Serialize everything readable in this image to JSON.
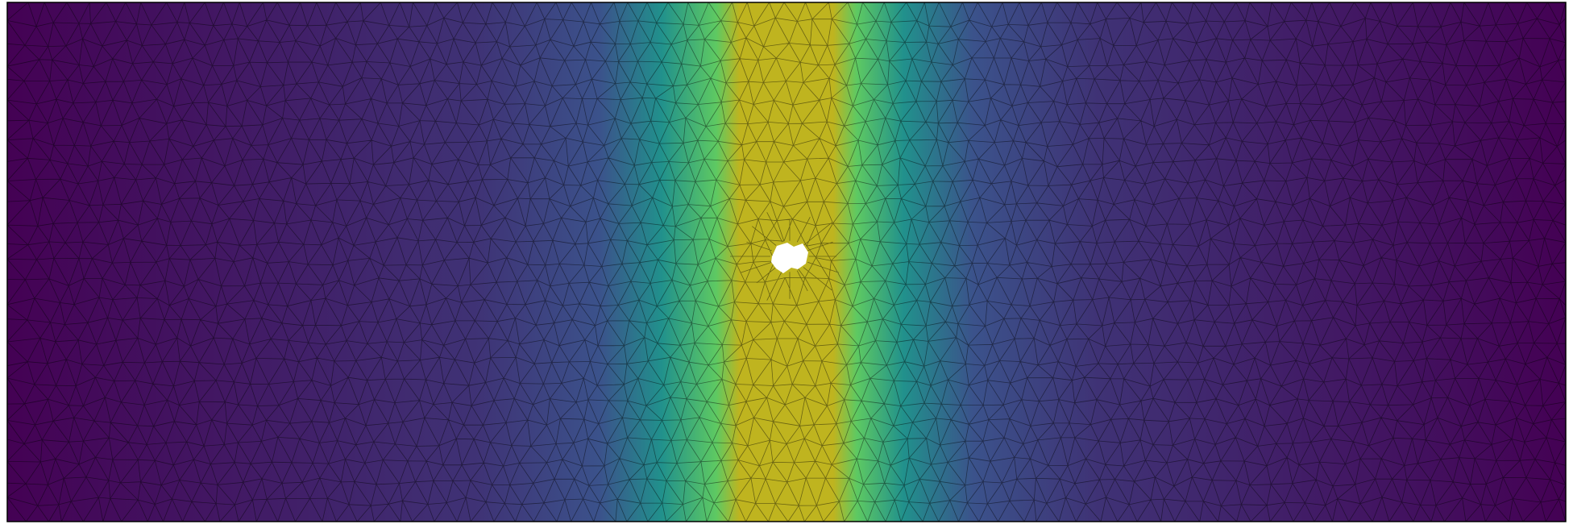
{
  "figure": {
    "colormap_stops": [
      "#440154",
      "#3b528b",
      "#21918c",
      "#5ec962",
      "#bfb41f"
    ],
    "background": "#ffffff",
    "mesh_line_color": "#000000",
    "hole_color": "#ffffff"
  }
}
